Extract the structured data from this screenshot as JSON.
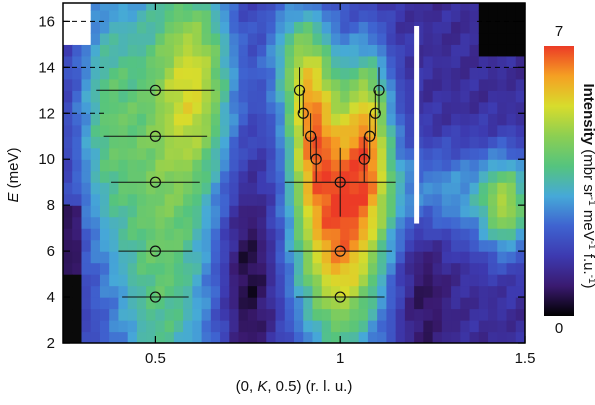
{
  "chart_data": {
    "type": "heatmap",
    "xlabel": "(0, K, 0.5) (r. l. u.)",
    "ylabel_var": "E",
    "ylabel_unit": " (meV)",
    "x_ticks": [
      "0.5",
      "1",
      "1.5"
    ],
    "x_tick_values": [
      0.5,
      1.0,
      1.5
    ],
    "y_ticks": [
      "2",
      "4",
      "6",
      "8",
      "10",
      "12",
      "14",
      "16"
    ],
    "y_tick_values": [
      2,
      4,
      6,
      8,
      10,
      12,
      14,
      16
    ],
    "xlim": [
      0.25,
      1.5
    ],
    "ylim": [
      2,
      16.8
    ],
    "grid": "dashed lines at E = 12, 14, 16",
    "colorbar": {
      "label_bold": "Intensity",
      "label_unit": " (mbr sr",
      "max_label": "7",
      "min_label": "0",
      "vmin": 0,
      "vmax": 7,
      "colors": [
        "#000000",
        "#3a1a70",
        "#3d3ab0",
        "#3f63d0",
        "#46a9d8",
        "#55c47e",
        "#8ccf52",
        "#d8dc2c",
        "#f5a023",
        "#ec3b26"
      ]
    },
    "series": [
      {
        "points": [
          {
            "x": 0.5,
            "y": 4,
            "xerr": 0.09
          },
          {
            "x": 0.5,
            "y": 6,
            "xerr": 0.1
          },
          {
            "x": 0.5,
            "y": 9,
            "xerr": 0.12
          },
          {
            "x": 0.5,
            "y": 11,
            "xerr": 0.14
          },
          {
            "x": 0.5,
            "y": 13,
            "xerr": 0.16
          }
        ]
      },
      {
        "points": [
          {
            "x": 1.0,
            "y": 4,
            "xerr": 0.12
          },
          {
            "x": 1.0,
            "y": 6,
            "xerr": 0.14
          },
          {
            "x": 1.0,
            "y": 9,
            "xerr": 0.15,
            "yerr": 1.5
          },
          {
            "x": 0.935,
            "y": 10,
            "yerr": 1.0
          },
          {
            "x": 1.065,
            "y": 10,
            "yerr": 1.0
          },
          {
            "x": 0.92,
            "y": 11,
            "yerr": 1.0
          },
          {
            "x": 1.08,
            "y": 11,
            "yerr": 1.0
          },
          {
            "x": 0.9,
            "y": 12,
            "yerr": 1.0
          },
          {
            "x": 1.095,
            "y": 12,
            "yerr": 1.0
          },
          {
            "x": 0.89,
            "y": 13,
            "yerr": 1.0
          },
          {
            "x": 1.105,
            "y": 13,
            "yerr": 1.0
          }
        ]
      }
    ]
  }
}
